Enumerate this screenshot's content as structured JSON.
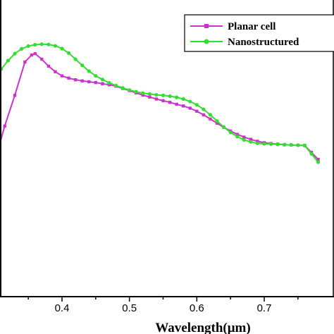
{
  "chart_data": {
    "type": "line",
    "title": "",
    "xlabel": "Wavelength(μm)",
    "ylabel": "",
    "xlim": [
      0.3,
      0.78
    ],
    "ylim": [
      0,
      1
    ],
    "xticks": [
      "0.4",
      "0.5",
      "0.6",
      "0.7"
    ],
    "xtick_values": [
      0.4,
      0.5,
      0.6,
      0.7
    ],
    "grid": false,
    "legend_position": "top-right",
    "series": [
      {
        "name": "Planar cell",
        "color": "#cc33cc",
        "marker": "square",
        "points": [
          [
            0.3,
            0.43
          ],
          [
            0.315,
            0.56
          ],
          [
            0.33,
            0.67
          ],
          [
            0.345,
            0.79
          ],
          [
            0.355,
            0.815
          ],
          [
            0.36,
            0.82
          ],
          [
            0.37,
            0.8
          ],
          [
            0.38,
            0.775
          ],
          [
            0.39,
            0.755
          ],
          [
            0.4,
            0.74
          ],
          [
            0.41,
            0.732
          ],
          [
            0.42,
            0.726
          ],
          [
            0.43,
            0.722
          ],
          [
            0.44,
            0.719
          ],
          [
            0.45,
            0.716
          ],
          [
            0.46,
            0.712
          ],
          [
            0.47,
            0.708
          ],
          [
            0.48,
            0.703
          ],
          [
            0.49,
            0.695
          ],
          [
            0.5,
            0.687
          ],
          [
            0.51,
            0.679
          ],
          [
            0.52,
            0.671
          ],
          [
            0.53,
            0.664
          ],
          [
            0.54,
            0.657
          ],
          [
            0.55,
            0.651
          ],
          [
            0.56,
            0.645
          ],
          [
            0.57,
            0.638
          ],
          [
            0.58,
            0.632
          ],
          [
            0.59,
            0.624
          ],
          [
            0.6,
            0.613
          ],
          [
            0.61,
            0.6
          ],
          [
            0.62,
            0.585
          ],
          [
            0.63,
            0.57
          ],
          [
            0.64,
            0.555
          ],
          [
            0.65,
            0.542
          ],
          [
            0.66,
            0.53
          ],
          [
            0.67,
            0.52
          ],
          [
            0.68,
            0.512
          ],
          [
            0.69,
            0.505
          ],
          [
            0.7,
            0.5
          ],
          [
            0.71,
            0.497
          ],
          [
            0.72,
            0.495
          ],
          [
            0.73,
            0.493
          ],
          [
            0.74,
            0.492
          ],
          [
            0.75,
            0.491
          ],
          [
            0.76,
            0.49
          ],
          [
            0.77,
            0.465
          ],
          [
            0.78,
            0.44
          ]
        ]
      },
      {
        "name": "Nanostructured",
        "color": "#33dd33",
        "marker": "circle",
        "points": [
          [
            0.3,
            0.73
          ],
          [
            0.31,
            0.765
          ],
          [
            0.32,
            0.795
          ],
          [
            0.33,
            0.82
          ],
          [
            0.34,
            0.837
          ],
          [
            0.35,
            0.847
          ],
          [
            0.36,
            0.852
          ],
          [
            0.37,
            0.854
          ],
          [
            0.38,
            0.853
          ],
          [
            0.39,
            0.848
          ],
          [
            0.4,
            0.838
          ],
          [
            0.41,
            0.822
          ],
          [
            0.42,
            0.8
          ],
          [
            0.43,
            0.778
          ],
          [
            0.44,
            0.757
          ],
          [
            0.45,
            0.74
          ],
          [
            0.46,
            0.727
          ],
          [
            0.47,
            0.715
          ],
          [
            0.48,
            0.705
          ],
          [
            0.49,
            0.697
          ],
          [
            0.5,
            0.689
          ],
          [
            0.51,
            0.683
          ],
          [
            0.52,
            0.678
          ],
          [
            0.53,
            0.675
          ],
          [
            0.54,
            0.672
          ],
          [
            0.55,
            0.67
          ],
          [
            0.56,
            0.667
          ],
          [
            0.57,
            0.663
          ],
          [
            0.58,
            0.657
          ],
          [
            0.59,
            0.648
          ],
          [
            0.6,
            0.636
          ],
          [
            0.61,
            0.62
          ],
          [
            0.62,
            0.6
          ],
          [
            0.63,
            0.578
          ],
          [
            0.64,
            0.556
          ],
          [
            0.65,
            0.537
          ],
          [
            0.66,
            0.522
          ],
          [
            0.67,
            0.51
          ],
          [
            0.68,
            0.503
          ],
          [
            0.69,
            0.498
          ],
          [
            0.7,
            0.496
          ],
          [
            0.71,
            0.495
          ],
          [
            0.72,
            0.494
          ],
          [
            0.73,
            0.493
          ],
          [
            0.74,
            0.492
          ],
          [
            0.75,
            0.491
          ],
          [
            0.76,
            0.49
          ],
          [
            0.77,
            0.46
          ],
          [
            0.78,
            0.43
          ]
        ]
      }
    ]
  }
}
